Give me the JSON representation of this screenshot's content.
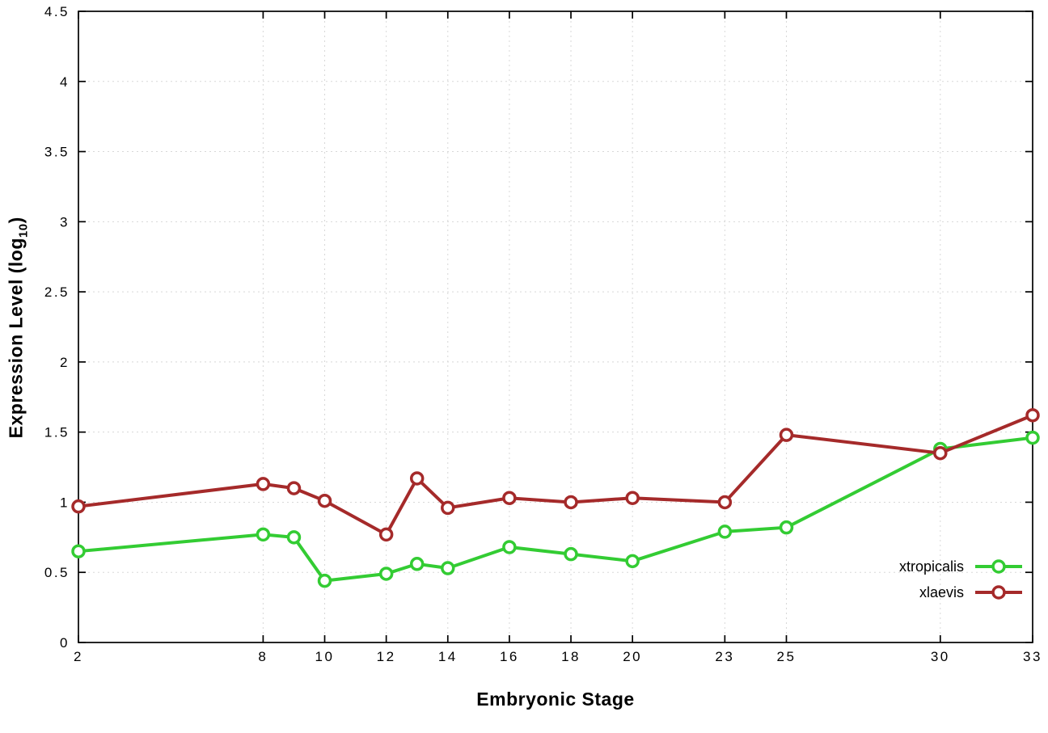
{
  "chart_data": {
    "type": "line",
    "title": "",
    "xlabel": "Embryonic Stage",
    "ylabel": "Expression Level (log10)",
    "ylabel_parts": {
      "main": "Expression Level (log",
      "sub": "10",
      "end": ")"
    },
    "xlim": [
      2,
      33
    ],
    "ylim": [
      0,
      4.5
    ],
    "xticks": [
      2,
      8,
      10,
      12,
      14,
      16,
      18,
      20,
      23,
      25,
      30,
      33
    ],
    "yticks": [
      0,
      0.5,
      1,
      1.5,
      2,
      2.5,
      3,
      3.5,
      4,
      4.5
    ],
    "grid": true,
    "legend_position": "inside-bottom-right",
    "x": [
      2,
      8,
      9,
      10,
      12,
      13,
      14,
      16,
      18,
      20,
      23,
      25,
      30,
      33
    ],
    "series": [
      {
        "name": "xtropicalis",
        "color": "#33cc33",
        "values": [
          0.65,
          0.77,
          0.75,
          0.44,
          0.49,
          0.56,
          0.53,
          0.68,
          0.63,
          0.58,
          0.79,
          0.82,
          1.38,
          1.46
        ]
      },
      {
        "name": "xlaevis",
        "color": "#a52a2a",
        "values": [
          0.97,
          1.13,
          1.1,
          1.01,
          0.77,
          1.17,
          0.96,
          1.03,
          1.0,
          1.03,
          1.0,
          1.48,
          1.35,
          1.62
        ]
      }
    ],
    "colors": {
      "grid": "#d8d8d8",
      "axis": "#000000",
      "background": "#ffffff"
    }
  }
}
